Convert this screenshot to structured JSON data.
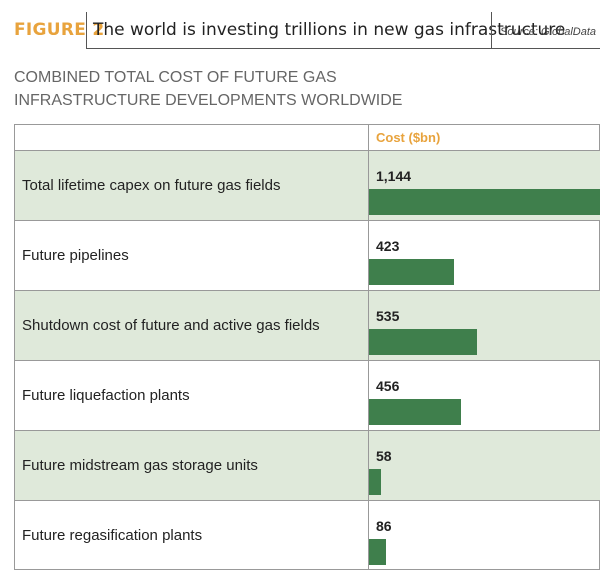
{
  "chart_data": {
    "type": "bar",
    "figure_label": "FIGURE 2",
    "title": "The world is investing trillions in new gas infrastructure",
    "source": "Source: GlobalData",
    "subtitle": "COMBINED TOTAL COST OF FUTURE GAS INFRASTRUCTURE DEVELOPMENTS WORLDWIDE",
    "categories": [
      "Total lifetime capex on future gas fields",
      "Future pipelines",
      "Shutdown cost of future and active gas fields",
      "Future liquefaction plants",
      "Future midstream gas storage units",
      "Future regasification plants"
    ],
    "series": [
      {
        "name": "Cost ($bn)",
        "color": "#3f7f4c",
        "values": [
          1144,
          423,
          535,
          456,
          58,
          86
        ],
        "value_labels": [
          "1,144",
          "423",
          "535",
          "456",
          "58",
          "86"
        ]
      }
    ]
  }
}
